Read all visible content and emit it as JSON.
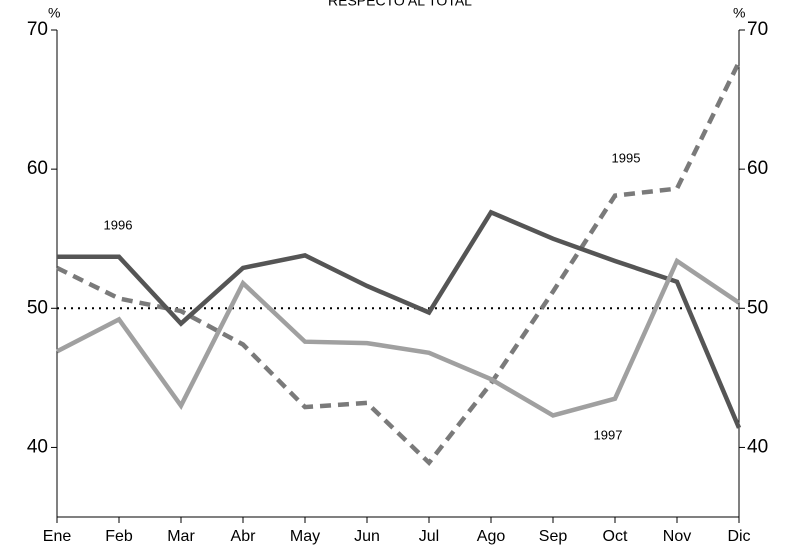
{
  "chart_data": {
    "type": "line",
    "title": "RESPECTO AL TOTAL",
    "y_label": "%",
    "y2_label": "%",
    "categories": [
      "Ene",
      "Feb",
      "Mar",
      "Abr",
      "May",
      "Jun",
      "Jul",
      "Ago",
      "Sep",
      "Oct",
      "Nov",
      "Dic"
    ],
    "series": [
      {
        "name": "1995",
        "color": "#7a7a7a",
        "dashed": true,
        "values": [
          52.9,
          50.7,
          49.8,
          47.4,
          42.9,
          43.2,
          38.9,
          44.6,
          51.2,
          58.1,
          58.6,
          67.7
        ]
      },
      {
        "name": "1996",
        "color": "#555555",
        "dashed": false,
        "values": [
          53.7,
          53.7,
          48.9,
          52.9,
          53.8,
          51.6,
          49.7,
          56.9,
          55.0,
          53.4,
          51.9,
          41.4
        ]
      },
      {
        "name": "1997",
        "color": "#a0a0a0",
        "dashed": false,
        "values": [
          46.9,
          49.2,
          43.0,
          51.8,
          47.6,
          47.5,
          46.8,
          44.9,
          42.3,
          43.5,
          53.4,
          50.4
        ]
      }
    ],
    "reference_line": 50,
    "ylim": [
      35,
      70
    ],
    "yticks": [
      40,
      50,
      60,
      70
    ],
    "y2lim": [
      35,
      70
    ],
    "y2ticks": [
      40,
      50,
      60,
      70
    ]
  }
}
